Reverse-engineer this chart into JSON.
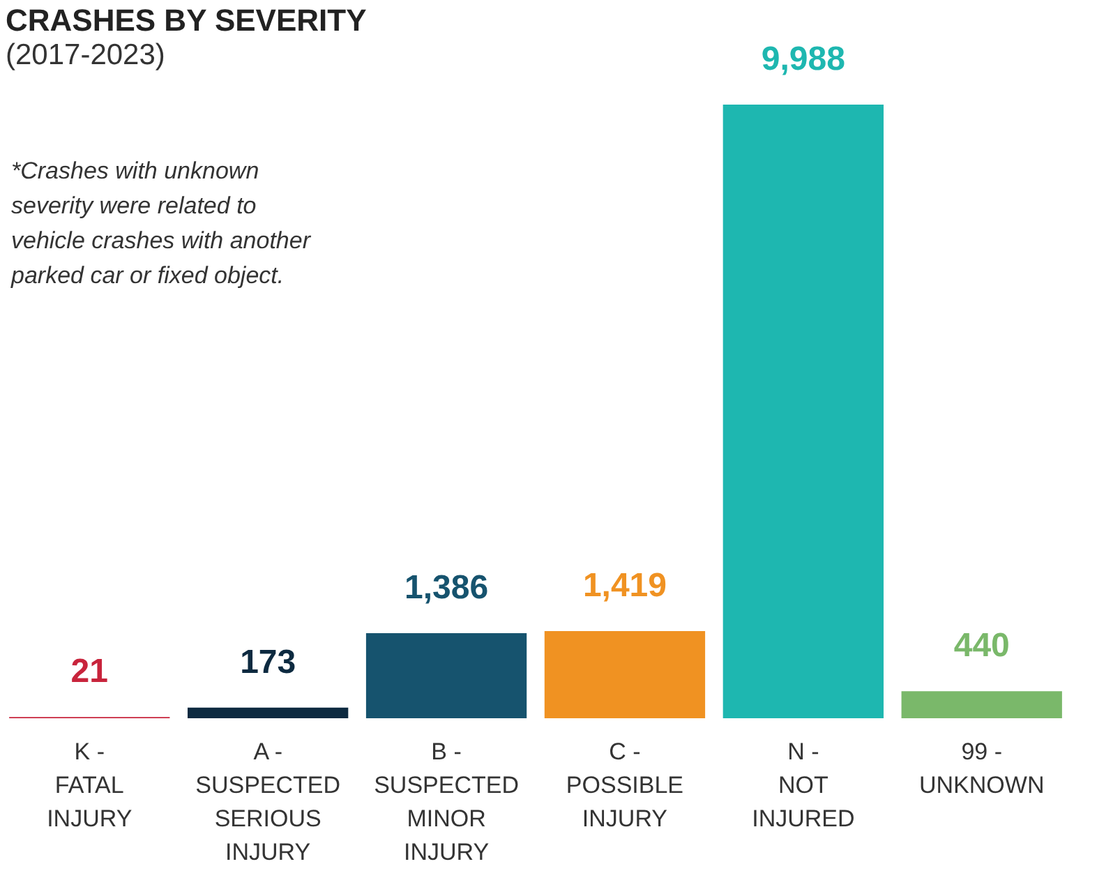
{
  "chart_data": {
    "type": "bar",
    "title": "CRASHES BY SEVERITY",
    "subtitle": "(2017-2023)",
    "categories": [
      "K -\nFATAL\nINJURY",
      "A -\nSUSPECTED\nSERIOUS\nINJURY",
      "B -\nSUSPECTED\nMINOR\nINJURY",
      "C -\nPOSSIBLE\nINJURY",
      "N -\nNOT\nINJURED",
      "99 -\nUNKNOWN"
    ],
    "values": [
      21,
      173,
      1386,
      1419,
      9988,
      440
    ],
    "colors": [
      "#c8243c",
      "#0d2a40",
      "#16536e",
      "#f09222",
      "#1eb7b0",
      "#7ab86a"
    ],
    "value_labels": [
      "21",
      "173",
      "1,386",
      "1,419",
      "9,988",
      "440"
    ],
    "grid": false,
    "annotations": [
      "*Crashes with unknown severity were related to vehicle crashes with another parked car or fixed object."
    ]
  }
}
